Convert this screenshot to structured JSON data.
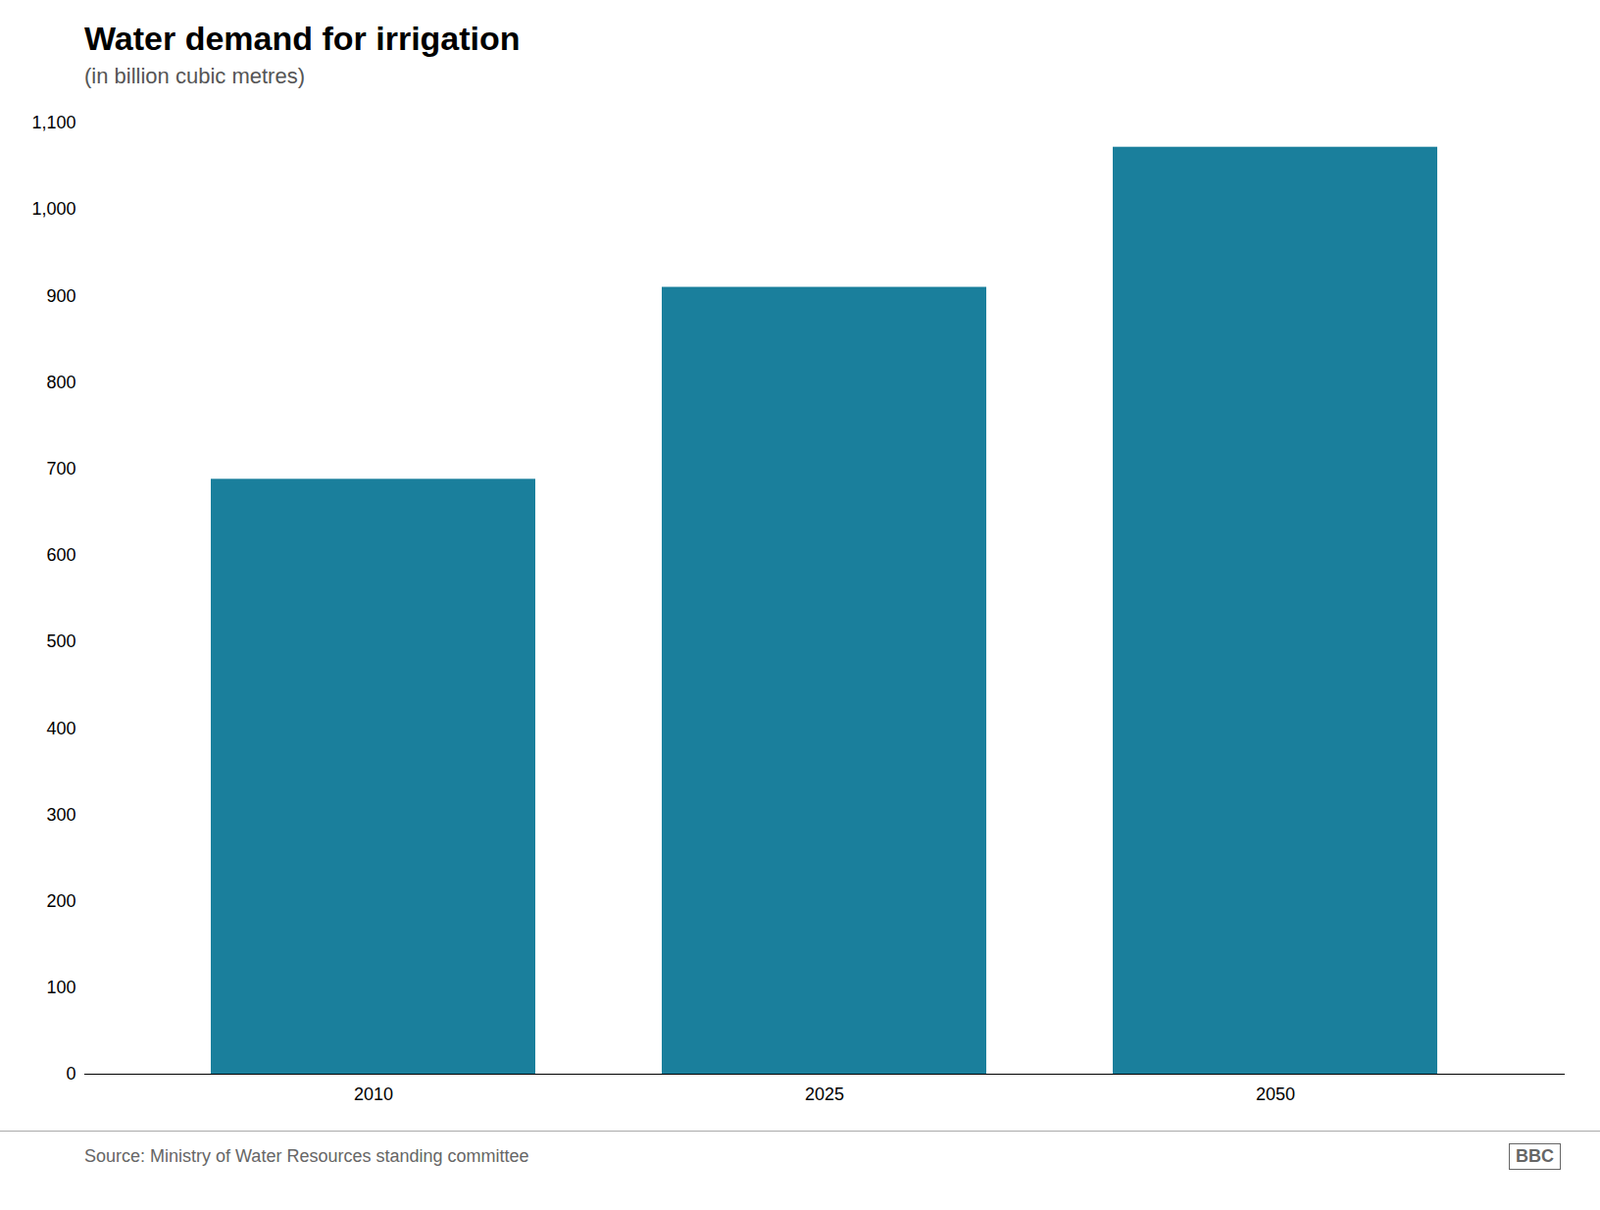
{
  "chart_data": {
    "type": "bar",
    "title": "Water demand for irrigation",
    "subtitle": "(in billion cubic metres)",
    "categories": [
      "2010",
      "2025",
      "2050"
    ],
    "values": [
      688,
      910,
      1072
    ],
    "color": "#1a7f9c",
    "ylim": [
      0,
      1100
    ],
    "yticks": [
      0,
      100,
      200,
      300,
      400,
      500,
      600,
      700,
      800,
      900,
      {
        "value": 1000,
        "label": "1,000"
      },
      {
        "value": 1100,
        "label": "1,100"
      }
    ],
    "grid": false,
    "source": "Source: Ministry of Water Resources standing committee",
    "annotations": [
      "BBC"
    ]
  }
}
